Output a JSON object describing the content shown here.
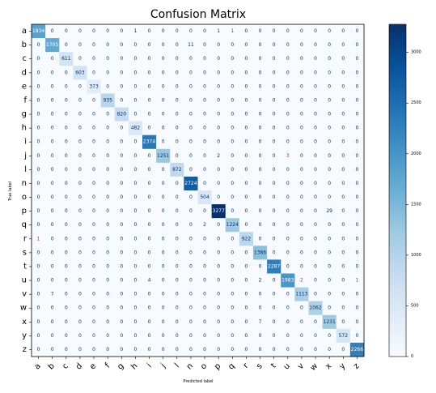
{
  "chart_data": {
    "type": "heatmap",
    "title": "Confusion Matrix",
    "xlabel": "Predicted label",
    "ylabel": "True label",
    "row_labels": [
      "a",
      "b",
      "c",
      "d",
      "e",
      "f",
      "g",
      "h",
      "i",
      "j",
      "l",
      "n",
      "o",
      "p",
      "q",
      "r",
      "s",
      "t",
      "u",
      "v",
      "w",
      "x",
      "y",
      "z"
    ],
    "col_labels": [
      "a",
      "b",
      "c",
      "d",
      "e",
      "f",
      "g",
      "h",
      "i",
      "j",
      "l",
      "n",
      "o",
      "p",
      "q",
      "r",
      "s",
      "t",
      "u",
      "v",
      "w",
      "x",
      "y",
      "z"
    ],
    "matrix": [
      [
        1834,
        0,
        0,
        0,
        0,
        0,
        0,
        1,
        0,
        0,
        0,
        0,
        0,
        1,
        1,
        0,
        0,
        0,
        0,
        0,
        0,
        0,
        0,
        0
      ],
      [
        0,
        1705,
        0,
        0,
        0,
        0,
        0,
        0,
        0,
        0,
        0,
        11,
        0,
        0,
        0,
        0,
        0,
        0,
        0,
        0,
        0,
        0,
        0,
        0
      ],
      [
        0,
        0,
        611,
        0,
        0,
        0,
        0,
        0,
        0,
        0,
        0,
        0,
        0,
        0,
        0,
        0,
        0,
        0,
        0,
        0,
        0,
        0,
        0,
        0
      ],
      [
        0,
        0,
        0,
        603,
        0,
        0,
        0,
        0,
        0,
        0,
        0,
        0,
        0,
        0,
        0,
        0,
        0,
        0,
        0,
        0,
        0,
        0,
        0,
        0
      ],
      [
        0,
        0,
        0,
        0,
        373,
        0,
        0,
        0,
        0,
        0,
        0,
        0,
        0,
        0,
        0,
        0,
        0,
        0,
        0,
        0,
        0,
        0,
        0,
        0
      ],
      [
        0,
        0,
        0,
        0,
        0,
        935,
        0,
        0,
        0,
        0,
        0,
        0,
        0,
        0,
        0,
        0,
        0,
        0,
        0,
        0,
        0,
        0,
        0,
        0
      ],
      [
        0,
        0,
        0,
        0,
        0,
        0,
        820,
        0,
        0,
        0,
        0,
        0,
        0,
        0,
        0,
        0,
        0,
        0,
        0,
        0,
        0,
        0,
        0,
        0
      ],
      [
        0,
        0,
        0,
        0,
        0,
        0,
        0,
        482,
        0,
        0,
        0,
        0,
        0,
        0,
        0,
        0,
        0,
        0,
        0,
        0,
        0,
        0,
        0,
        0
      ],
      [
        0,
        0,
        0,
        0,
        0,
        0,
        0,
        0,
        2374,
        0,
        0,
        0,
        0,
        0,
        0,
        0,
        0,
        0,
        0,
        0,
        0,
        0,
        0,
        0
      ],
      [
        0,
        0,
        0,
        0,
        0,
        0,
        0,
        0,
        0,
        1251,
        0,
        0,
        0,
        2,
        0,
        0,
        0,
        0,
        3,
        0,
        0,
        0,
        0,
        0
      ],
      [
        0,
        0,
        0,
        0,
        0,
        0,
        0,
        0,
        0,
        0,
        872,
        0,
        0,
        0,
        0,
        0,
        0,
        0,
        0,
        0,
        0,
        0,
        0,
        0
      ],
      [
        0,
        0,
        0,
        0,
        0,
        0,
        0,
        0,
        0,
        0,
        0,
        2724,
        0,
        0,
        0,
        0,
        0,
        0,
        0,
        0,
        0,
        0,
        0,
        0
      ],
      [
        0,
        0,
        0,
        0,
        0,
        0,
        0,
        0,
        0,
        0,
        0,
        0,
        504,
        0,
        0,
        0,
        0,
        0,
        0,
        0,
        0,
        0,
        0,
        0
      ],
      [
        0,
        0,
        0,
        0,
        0,
        0,
        0,
        0,
        0,
        0,
        0,
        0,
        0,
        3277,
        0,
        0,
        0,
        0,
        0,
        0,
        0,
        29,
        0,
        0
      ],
      [
        0,
        0,
        0,
        0,
        0,
        0,
        0,
        0,
        0,
        0,
        0,
        0,
        2,
        0,
        1224,
        0,
        0,
        0,
        0,
        0,
        0,
        0,
        0,
        0
      ],
      [
        1,
        0,
        0,
        0,
        0,
        0,
        0,
        0,
        0,
        0,
        0,
        0,
        0,
        0,
        0,
        922,
        0,
        0,
        0,
        0,
        0,
        0,
        0,
        0
      ],
      [
        0,
        0,
        0,
        0,
        0,
        0,
        0,
        0,
        0,
        0,
        0,
        0,
        0,
        0,
        0,
        0,
        1386,
        0,
        0,
        0,
        0,
        0,
        0,
        0
      ],
      [
        0,
        0,
        0,
        0,
        0,
        0,
        0,
        0,
        0,
        0,
        0,
        0,
        0,
        0,
        0,
        0,
        0,
        2287,
        0,
        0,
        0,
        0,
        0,
        0
      ],
      [
        0,
        0,
        0,
        0,
        0,
        0,
        0,
        0,
        4,
        0,
        0,
        0,
        0,
        0,
        0,
        0,
        2,
        0,
        1983,
        2,
        0,
        0,
        0,
        1
      ],
      [
        0,
        7,
        0,
        0,
        0,
        0,
        0,
        0,
        0,
        0,
        0,
        0,
        0,
        0,
        0,
        0,
        0,
        0,
        0,
        1113,
        0,
        0,
        0,
        0
      ],
      [
        0,
        0,
        0,
        0,
        0,
        0,
        0,
        0,
        0,
        0,
        0,
        0,
        0,
        0,
        0,
        0,
        0,
        0,
        0,
        0,
        1062,
        0,
        0,
        0
      ],
      [
        0,
        0,
        0,
        0,
        0,
        0,
        0,
        0,
        0,
        0,
        0,
        0,
        0,
        0,
        0,
        0,
        7,
        0,
        0,
        0,
        0,
        1231,
        0,
        0
      ],
      [
        0,
        0,
        0,
        0,
        0,
        0,
        0,
        0,
        0,
        0,
        0,
        0,
        0,
        0,
        0,
        0,
        0,
        0,
        0,
        0,
        0,
        0,
        572,
        0
      ],
      [
        0,
        0,
        0,
        0,
        0,
        0,
        0,
        0,
        0,
        0,
        0,
        0,
        0,
        0,
        0,
        0,
        0,
        0,
        0,
        0,
        0,
        0,
        0,
        2266
      ]
    ],
    "colorbar": {
      "range": [
        0,
        3277
      ],
      "ticks": [
        0,
        500,
        1000,
        1500,
        2000,
        2500,
        3000
      ],
      "colormap": "Blues"
    },
    "highlight_color": "#d62728",
    "highlight_cells": [
      [
        0,
        14
      ],
      [
        9,
        18
      ],
      [
        15,
        0
      ],
      [
        18,
        19
      ],
      [
        18,
        23
      ]
    ]
  }
}
